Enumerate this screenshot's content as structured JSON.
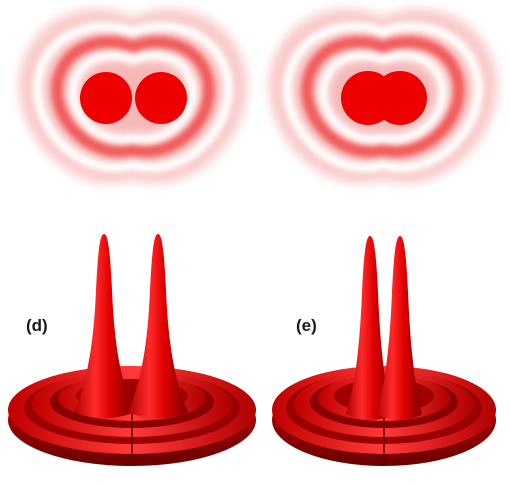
{
  "panels": {
    "d": {
      "label": "(d)"
    },
    "e": {
      "label": "(e)"
    }
  },
  "colors": {
    "primary_red": "#e00000",
    "light_red": "#ff8080",
    "dark_red": "#8a0000",
    "background": "#ffffff"
  }
}
